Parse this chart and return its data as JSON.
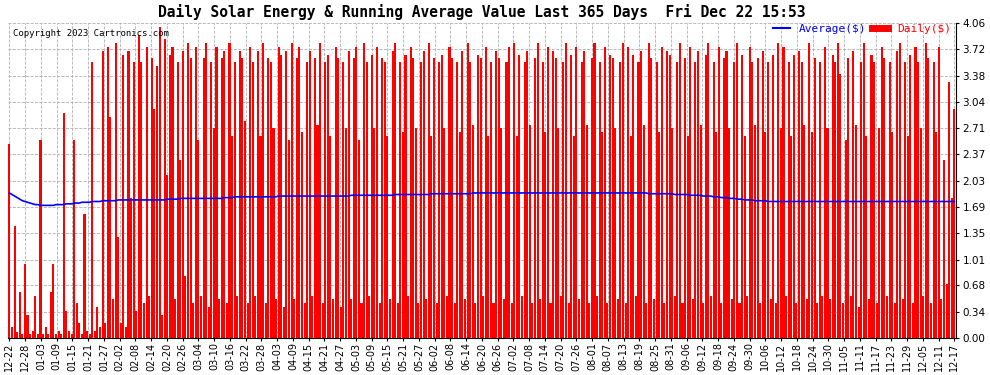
{
  "title": "Daily Solar Energy & Running Average Value Last 365 Days  Fri Dec 22 15:53",
  "copyright": "Copyright 2023 Cartronics.com",
  "legend_avg": "Average($)",
  "legend_daily": "Daily($)",
  "bar_color": "#ff0000",
  "avg_line_color": "#0000ff",
  "background_color": "#ffffff",
  "grid_color": "#b0b0b0",
  "ylim": [
    0.0,
    4.06
  ],
  "yticks": [
    0.0,
    0.34,
    0.68,
    1.01,
    1.35,
    1.69,
    2.03,
    2.37,
    2.71,
    3.04,
    3.38,
    3.72,
    4.06
  ],
  "x_labels": [
    "12-22",
    "12-28",
    "01-03",
    "01-09",
    "01-15",
    "01-21",
    "01-27",
    "02-02",
    "02-08",
    "02-14",
    "02-20",
    "02-26",
    "03-04",
    "03-10",
    "03-16",
    "03-22",
    "03-28",
    "04-03",
    "04-09",
    "04-15",
    "04-21",
    "04-27",
    "05-03",
    "05-09",
    "05-15",
    "05-21",
    "05-27",
    "06-02",
    "06-08",
    "06-14",
    "06-20",
    "06-26",
    "07-02",
    "07-08",
    "07-14",
    "07-20",
    "07-26",
    "08-01",
    "08-07",
    "08-13",
    "08-19",
    "08-25",
    "08-31",
    "09-06",
    "09-12",
    "09-18",
    "09-24",
    "09-30",
    "10-06",
    "10-12",
    "10-18",
    "10-24",
    "10-30",
    "11-05",
    "11-11",
    "11-17",
    "11-23",
    "11-29",
    "12-05",
    "12-11",
    "12-17"
  ],
  "daily_values": [
    2.5,
    0.15,
    1.45,
    0.08,
    0.6,
    0.05,
    0.95,
    0.3,
    0.05,
    0.1,
    0.55,
    0.05,
    2.55,
    0.05,
    0.15,
    0.05,
    0.6,
    0.95,
    0.05,
    0.1,
    0.05,
    2.9,
    0.35,
    0.1,
    0.05,
    2.55,
    0.45,
    0.2,
    0.05,
    1.6,
    0.1,
    0.05,
    3.55,
    0.1,
    0.4,
    0.15,
    3.7,
    0.2,
    3.75,
    2.85,
    0.5,
    3.8,
    1.3,
    0.2,
    3.65,
    0.15,
    3.7,
    1.8,
    3.55,
    0.35,
    3.9,
    3.55,
    0.45,
    3.75,
    0.55,
    3.6,
    2.95,
    3.5,
    4.0,
    0.3,
    3.85,
    2.1,
    3.65,
    3.75,
    0.5,
    3.55,
    2.3,
    3.7,
    0.8,
    3.8,
    3.6,
    0.45,
    3.75,
    2.55,
    0.55,
    3.6,
    3.8,
    0.4,
    3.55,
    2.7,
    3.75,
    0.5,
    3.6,
    3.7,
    0.45,
    3.8,
    2.6,
    3.55,
    0.55,
    3.7,
    3.6,
    2.8,
    0.45,
    3.75,
    3.55,
    0.55,
    3.7,
    2.6,
    3.8,
    0.45,
    3.6,
    3.55,
    2.7,
    0.5,
    3.75,
    3.65,
    0.4,
    3.7,
    2.55,
    3.8,
    0.5,
    3.6,
    3.75,
    2.65,
    0.45,
    3.55,
    3.7,
    0.55,
    3.6,
    2.75,
    3.8,
    0.45,
    3.55,
    3.65,
    2.6,
    0.5,
    3.75,
    3.6,
    0.4,
    3.55,
    2.7,
    3.7,
    0.5,
    3.6,
    3.75,
    2.55,
    0.45,
    3.8,
    3.55,
    0.55,
    3.65,
    2.7,
    3.75,
    0.45,
    3.6,
    3.55,
    2.6,
    0.5,
    3.7,
    3.8,
    0.45,
    3.55,
    2.65,
    3.65,
    0.55,
    3.75,
    3.6,
    2.7,
    0.45,
    3.55,
    3.7,
    0.5,
    3.8,
    2.6,
    3.6,
    0.45,
    3.55,
    3.65,
    2.7,
    0.55,
    3.75,
    3.6,
    0.45,
    3.55,
    2.65,
    3.7,
    0.5,
    3.8,
    3.55,
    2.75,
    0.45,
    3.65,
    3.6,
    0.55,
    3.75,
    2.6,
    3.55,
    0.45,
    3.7,
    3.6,
    2.7,
    0.5,
    3.55,
    3.75,
    0.45,
    3.8,
    2.6,
    3.65,
    0.55,
    3.55,
    3.7,
    2.75,
    0.45,
    3.6,
    3.8,
    0.5,
    3.55,
    2.65,
    3.75,
    0.45,
    3.7,
    3.6,
    2.7,
    0.55,
    3.55,
    3.8,
    0.45,
    3.65,
    2.6,
    3.75,
    0.5,
    3.55,
    3.7,
    2.75,
    0.45,
    3.6,
    3.8,
    0.55,
    3.55,
    2.65,
    3.75,
    0.45,
    3.65,
    3.6,
    2.7,
    0.5,
    3.55,
    3.8,
    0.45,
    3.75,
    2.6,
    3.65,
    0.55,
    3.55,
    3.7,
    2.75,
    0.45,
    3.8,
    3.6,
    0.5,
    3.55,
    2.65,
    3.75,
    0.45,
    3.7,
    3.65,
    2.7,
    0.55,
    3.55,
    3.8,
    0.45,
    3.6,
    2.6,
    3.75,
    0.5,
    3.55,
    3.7,
    2.75,
    0.45,
    3.65,
    3.8,
    0.55,
    3.55,
    2.65,
    3.75,
    0.45,
    3.6,
    3.7,
    2.7,
    0.5,
    3.55,
    3.8,
    0.45,
    3.65,
    2.6,
    0.55,
    3.75,
    3.55,
    2.75,
    3.6,
    0.45,
    3.7,
    2.65,
    3.55,
    0.5,
    3.65,
    0.45,
    3.8,
    2.7,
    3.75,
    0.55,
    3.55,
    2.6,
    3.65,
    0.45,
    3.7,
    3.55,
    2.75,
    0.5,
    3.8,
    2.65,
    3.6,
    0.45,
    3.55,
    0.55,
    3.75,
    2.7,
    0.5,
    3.65,
    3.55,
    3.8,
    3.4,
    0.45,
    2.55,
    3.6,
    0.55,
    3.7,
    2.75,
    0.4,
    3.55,
    3.8,
    2.6,
    0.5,
    3.65,
    3.55,
    0.45,
    2.7,
    3.75,
    3.6,
    0.55,
    3.55,
    2.65,
    0.45,
    3.7,
    3.8,
    0.5,
    3.55,
    2.6,
    3.65,
    0.45,
    3.75,
    3.55,
    2.7,
    0.55,
    3.8,
    3.6,
    0.45,
    3.55,
    2.65,
    3.75,
    0.5,
    2.3,
    0.7,
    3.3,
    1.8,
    2.95
  ],
  "avg_values": [
    1.87,
    1.85,
    1.83,
    1.81,
    1.79,
    1.77,
    1.76,
    1.75,
    1.74,
    1.73,
    1.72,
    1.72,
    1.71,
    1.71,
    1.71,
    1.71,
    1.71,
    1.71,
    1.72,
    1.72,
    1.72,
    1.72,
    1.73,
    1.73,
    1.73,
    1.74,
    1.74,
    1.74,
    1.75,
    1.75,
    1.75,
    1.75,
    1.76,
    1.76,
    1.76,
    1.76,
    1.77,
    1.77,
    1.77,
    1.77,
    1.77,
    1.77,
    1.78,
    1.78,
    1.78,
    1.78,
    1.78,
    1.78,
    1.78,
    1.78,
    1.78,
    1.78,
    1.78,
    1.78,
    1.78,
    1.78,
    1.78,
    1.78,
    1.78,
    1.78,
    1.78,
    1.79,
    1.79,
    1.79,
    1.79,
    1.79,
    1.8,
    1.8,
    1.8,
    1.8,
    1.8,
    1.8,
    1.8,
    1.8,
    1.8,
    1.8,
    1.8,
    1.8,
    1.8,
    1.8,
    1.8,
    1.8,
    1.8,
    1.81,
    1.81,
    1.81,
    1.81,
    1.82,
    1.82,
    1.82,
    1.82,
    1.82,
    1.82,
    1.82,
    1.82,
    1.82,
    1.82,
    1.82,
    1.82,
    1.82,
    1.82,
    1.82,
    1.82,
    1.82,
    1.83,
    1.83,
    1.83,
    1.83,
    1.83,
    1.83,
    1.83,
    1.83,
    1.83,
    1.83,
    1.83,
    1.83,
    1.83,
    1.83,
    1.83,
    1.83,
    1.83,
    1.83,
    1.83,
    1.83,
    1.83,
    1.83,
    1.83,
    1.83,
    1.83,
    1.83,
    1.83,
    1.83,
    1.84,
    1.84,
    1.84,
    1.84,
    1.84,
    1.84,
    1.84,
    1.84,
    1.84,
    1.84,
    1.84,
    1.84,
    1.84,
    1.84,
    1.84,
    1.84,
    1.84,
    1.85,
    1.85,
    1.85,
    1.85,
    1.85,
    1.85,
    1.85,
    1.85,
    1.85,
    1.85,
    1.85,
    1.85,
    1.85,
    1.85,
    1.86,
    1.86,
    1.86,
    1.86,
    1.86,
    1.86,
    1.86,
    1.86,
    1.86,
    1.86,
    1.86,
    1.86,
    1.86,
    1.86,
    1.86,
    1.86,
    1.87,
    1.87,
    1.87,
    1.87,
    1.87,
    1.87,
    1.87,
    1.87,
    1.87,
    1.87,
    1.87,
    1.87,
    1.87,
    1.87,
    1.87,
    1.87,
    1.87,
    1.87,
    1.87,
    1.87,
    1.87,
    1.87,
    1.87,
    1.87,
    1.87,
    1.87,
    1.87,
    1.87,
    1.87,
    1.87,
    1.87,
    1.87,
    1.87,
    1.87,
    1.87,
    1.87,
    1.87,
    1.87,
    1.87,
    1.87,
    1.87,
    1.87,
    1.87,
    1.87,
    1.87,
    1.87,
    1.87,
    1.87,
    1.87,
    1.87,
    1.87,
    1.87,
    1.87,
    1.87,
    1.87,
    1.87,
    1.87,
    1.87,
    1.87,
    1.87,
    1.87,
    1.87,
    1.87,
    1.87,
    1.87,
    1.87,
    1.87,
    1.87,
    1.86,
    1.86,
    1.86,
    1.86,
    1.86,
    1.86,
    1.86,
    1.86,
    1.86,
    1.86,
    1.85,
    1.85,
    1.85,
    1.85,
    1.85,
    1.85,
    1.84,
    1.84,
    1.84,
    1.84,
    1.84,
    1.83,
    1.83,
    1.83,
    1.83,
    1.82,
    1.82,
    1.82,
    1.81,
    1.81,
    1.81,
    1.8,
    1.8,
    1.8,
    1.79,
    1.79,
    1.79,
    1.78,
    1.78,
    1.78,
    1.78,
    1.77,
    1.77,
    1.77,
    1.77,
    1.77,
    1.76,
    1.76,
    1.76,
    1.76,
    1.76,
    1.76,
    1.76,
    1.76,
    1.76,
    1.76,
    1.76,
    1.76,
    1.76,
    1.76,
    1.76,
    1.76,
    1.76,
    1.76,
    1.76,
    1.76,
    1.76,
    1.76,
    1.76,
    1.76,
    1.76,
    1.76,
    1.76,
    1.76,
    1.76,
    1.76,
    1.76,
    1.76,
    1.76,
    1.76,
    1.76,
    1.76,
    1.76,
    1.76,
    1.76,
    1.76,
    1.76,
    1.76,
    1.76,
    1.76,
    1.76,
    1.76,
    1.76,
    1.76,
    1.76,
    1.76,
    1.76,
    1.76,
    1.76,
    1.76,
    1.76,
    1.76,
    1.76,
    1.76,
    1.76,
    1.76,
    1.76,
    1.76,
    1.76,
    1.76,
    1.76,
    1.76,
    1.76,
    1.76,
    1.76,
    1.76,
    1.76,
    1.76,
    1.76,
    1.78
  ]
}
